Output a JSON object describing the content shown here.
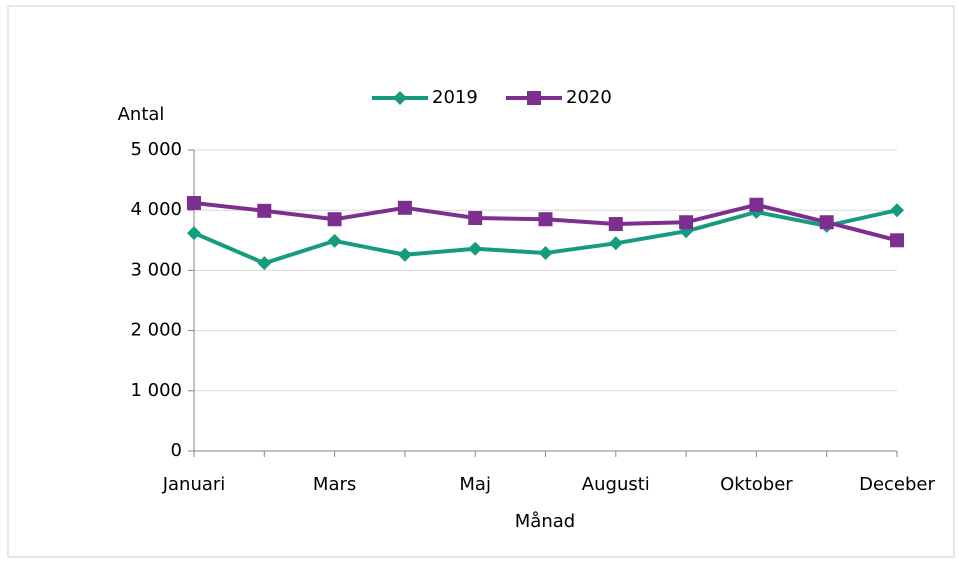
{
  "chart_data": {
    "type": "line",
    "y_label": "Antal",
    "x_label": "Månad",
    "categories": [
      "Januari",
      null,
      "Mars",
      null,
      "Maj",
      null,
      "Augusti",
      null,
      "Oktober",
      null,
      "Deceber"
    ],
    "series": [
      {
        "name": "2019",
        "color": "#159b7e",
        "marker": "diamond",
        "values": [
          3620,
          3120,
          3490,
          3260,
          3360,
          3290,
          3450,
          3650,
          3970,
          3740,
          4000
        ]
      },
      {
        "name": "2020",
        "color": "#7d2f8f",
        "marker": "square",
        "values": [
          4120,
          3990,
          3850,
          4040,
          3870,
          3850,
          3770,
          3800,
          4090,
          3800,
          3500
        ]
      }
    ],
    "ylim": [
      0,
      5000
    ],
    "yticks": [
      0,
      {
        "value": 1000,
        "label": "1 000"
      },
      {
        "value": 2000,
        "label": "2 000"
      },
      {
        "value": 3000,
        "label": "3 000"
      },
      {
        "value": 4000,
        "label": "4 000"
      },
      {
        "value": 5000,
        "label": "5 000"
      }
    ],
    "grid": true,
    "legend": "top"
  }
}
